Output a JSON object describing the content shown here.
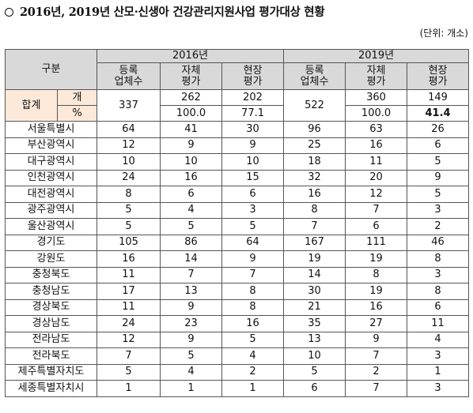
{
  "title": "2016년, 2019년 산모·신생아 건강관리지원사업 평가대상 현황",
  "unit": "(단위: 개소)",
  "header": {
    "group_label": "구분",
    "year_2016": "2016년",
    "year_2019": "2019년",
    "col_registered": "등록\n업체수",
    "col_self": "자체\n평가",
    "col_site": "현장\n평가"
  },
  "total": {
    "label": "합계",
    "unit_count": "개",
    "unit_pct": "%",
    "y2016": {
      "registered": "337",
      "self": "262",
      "site": "202",
      "self_pct": "100.0",
      "site_pct": "77.1"
    },
    "y2019": {
      "registered": "522",
      "self": "360",
      "site": "149",
      "self_pct": "100.0",
      "site_pct": "41.4"
    }
  },
  "rows": [
    {
      "region": "서울특별시",
      "r16": "64",
      "s16": "41",
      "t16": "30",
      "r19": "96",
      "s19": "63",
      "t19": "26"
    },
    {
      "region": "부산광역시",
      "r16": "12",
      "s16": "9",
      "t16": "9",
      "r19": "25",
      "s19": "16",
      "t19": "6"
    },
    {
      "region": "대구광역시",
      "r16": "10",
      "s16": "10",
      "t16": "10",
      "r19": "18",
      "s19": "11",
      "t19": "5"
    },
    {
      "region": "인천광역시",
      "r16": "24",
      "s16": "16",
      "t16": "15",
      "r19": "32",
      "s19": "20",
      "t19": "9"
    },
    {
      "region": "대전광역시",
      "r16": "8",
      "s16": "6",
      "t16": "6",
      "r19": "16",
      "s19": "12",
      "t19": "5"
    },
    {
      "region": "광주광역시",
      "r16": "5",
      "s16": "4",
      "t16": "3",
      "r19": "8",
      "s19": "7",
      "t19": "3"
    },
    {
      "region": "울산광역시",
      "r16": "5",
      "s16": "5",
      "t16": "5",
      "r19": "7",
      "s19": "6",
      "t19": "2"
    },
    {
      "region": "경기도",
      "r16": "105",
      "s16": "86",
      "t16": "64",
      "r19": "167",
      "s19": "111",
      "t19": "46"
    },
    {
      "region": "강원도",
      "r16": "16",
      "s16": "14",
      "t16": "9",
      "r19": "19",
      "s19": "19",
      "t19": "8"
    },
    {
      "region": "충청북도",
      "r16": "11",
      "s16": "7",
      "t16": "7",
      "r19": "14",
      "s19": "8",
      "t19": "3"
    },
    {
      "region": "충청남도",
      "r16": "17",
      "s16": "13",
      "t16": "8",
      "r19": "30",
      "s19": "19",
      "t19": "8"
    },
    {
      "region": "경상북도",
      "r16": "11",
      "s16": "9",
      "t16": "8",
      "r19": "21",
      "s19": "16",
      "t19": "6"
    },
    {
      "region": "경상남도",
      "r16": "24",
      "s16": "23",
      "t16": "16",
      "r19": "35",
      "s19": "27",
      "t19": "11"
    },
    {
      "region": "전라남도",
      "r16": "12",
      "s16": "9",
      "t16": "5",
      "r19": "13",
      "s19": "9",
      "t19": "4"
    },
    {
      "region": "전라북도",
      "r16": "7",
      "s16": "5",
      "t16": "4",
      "r19": "10",
      "s19": "7",
      "t19": "3"
    },
    {
      "region": "제주특별자치도",
      "r16": "5",
      "s16": "4",
      "t16": "2",
      "r19": "5",
      "s19": "2",
      "t19": "1"
    },
    {
      "region": "세종특별자치시",
      "r16": "1",
      "s16": "1",
      "t16": "1",
      "r19": "6",
      "s19": "7",
      "t19": "3"
    }
  ]
}
